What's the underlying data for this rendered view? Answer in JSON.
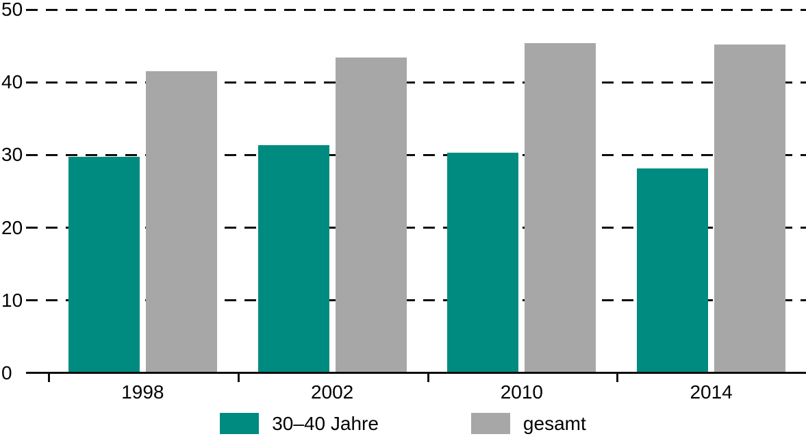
{
  "chart_data": {
    "type": "bar",
    "title": "",
    "xlabel": "",
    "ylabel": "",
    "categories": [
      "1998",
      "2002",
      "2010",
      "2014"
    ],
    "series": [
      {
        "name": "30–40 Jahre",
        "color": "#008B80",
        "values": [
          29.8,
          31.4,
          30.3,
          28.2
        ]
      },
      {
        "name": "gesamt",
        "color": "#A7A7A7",
        "values": [
          41.5,
          43.4,
          45.4,
          45.2
        ]
      }
    ],
    "ylim": [
      0,
      50
    ],
    "yticks": [
      0,
      10,
      20,
      30,
      40,
      50
    ],
    "grid": "horizontal-dashed",
    "legend_position": "bottom"
  },
  "colors": {
    "bar_teal": "#008B80",
    "bar_gray": "#A7A7A7",
    "axis": "#0D0D0D",
    "background": "#FFFFFF",
    "text": "#000000"
  }
}
